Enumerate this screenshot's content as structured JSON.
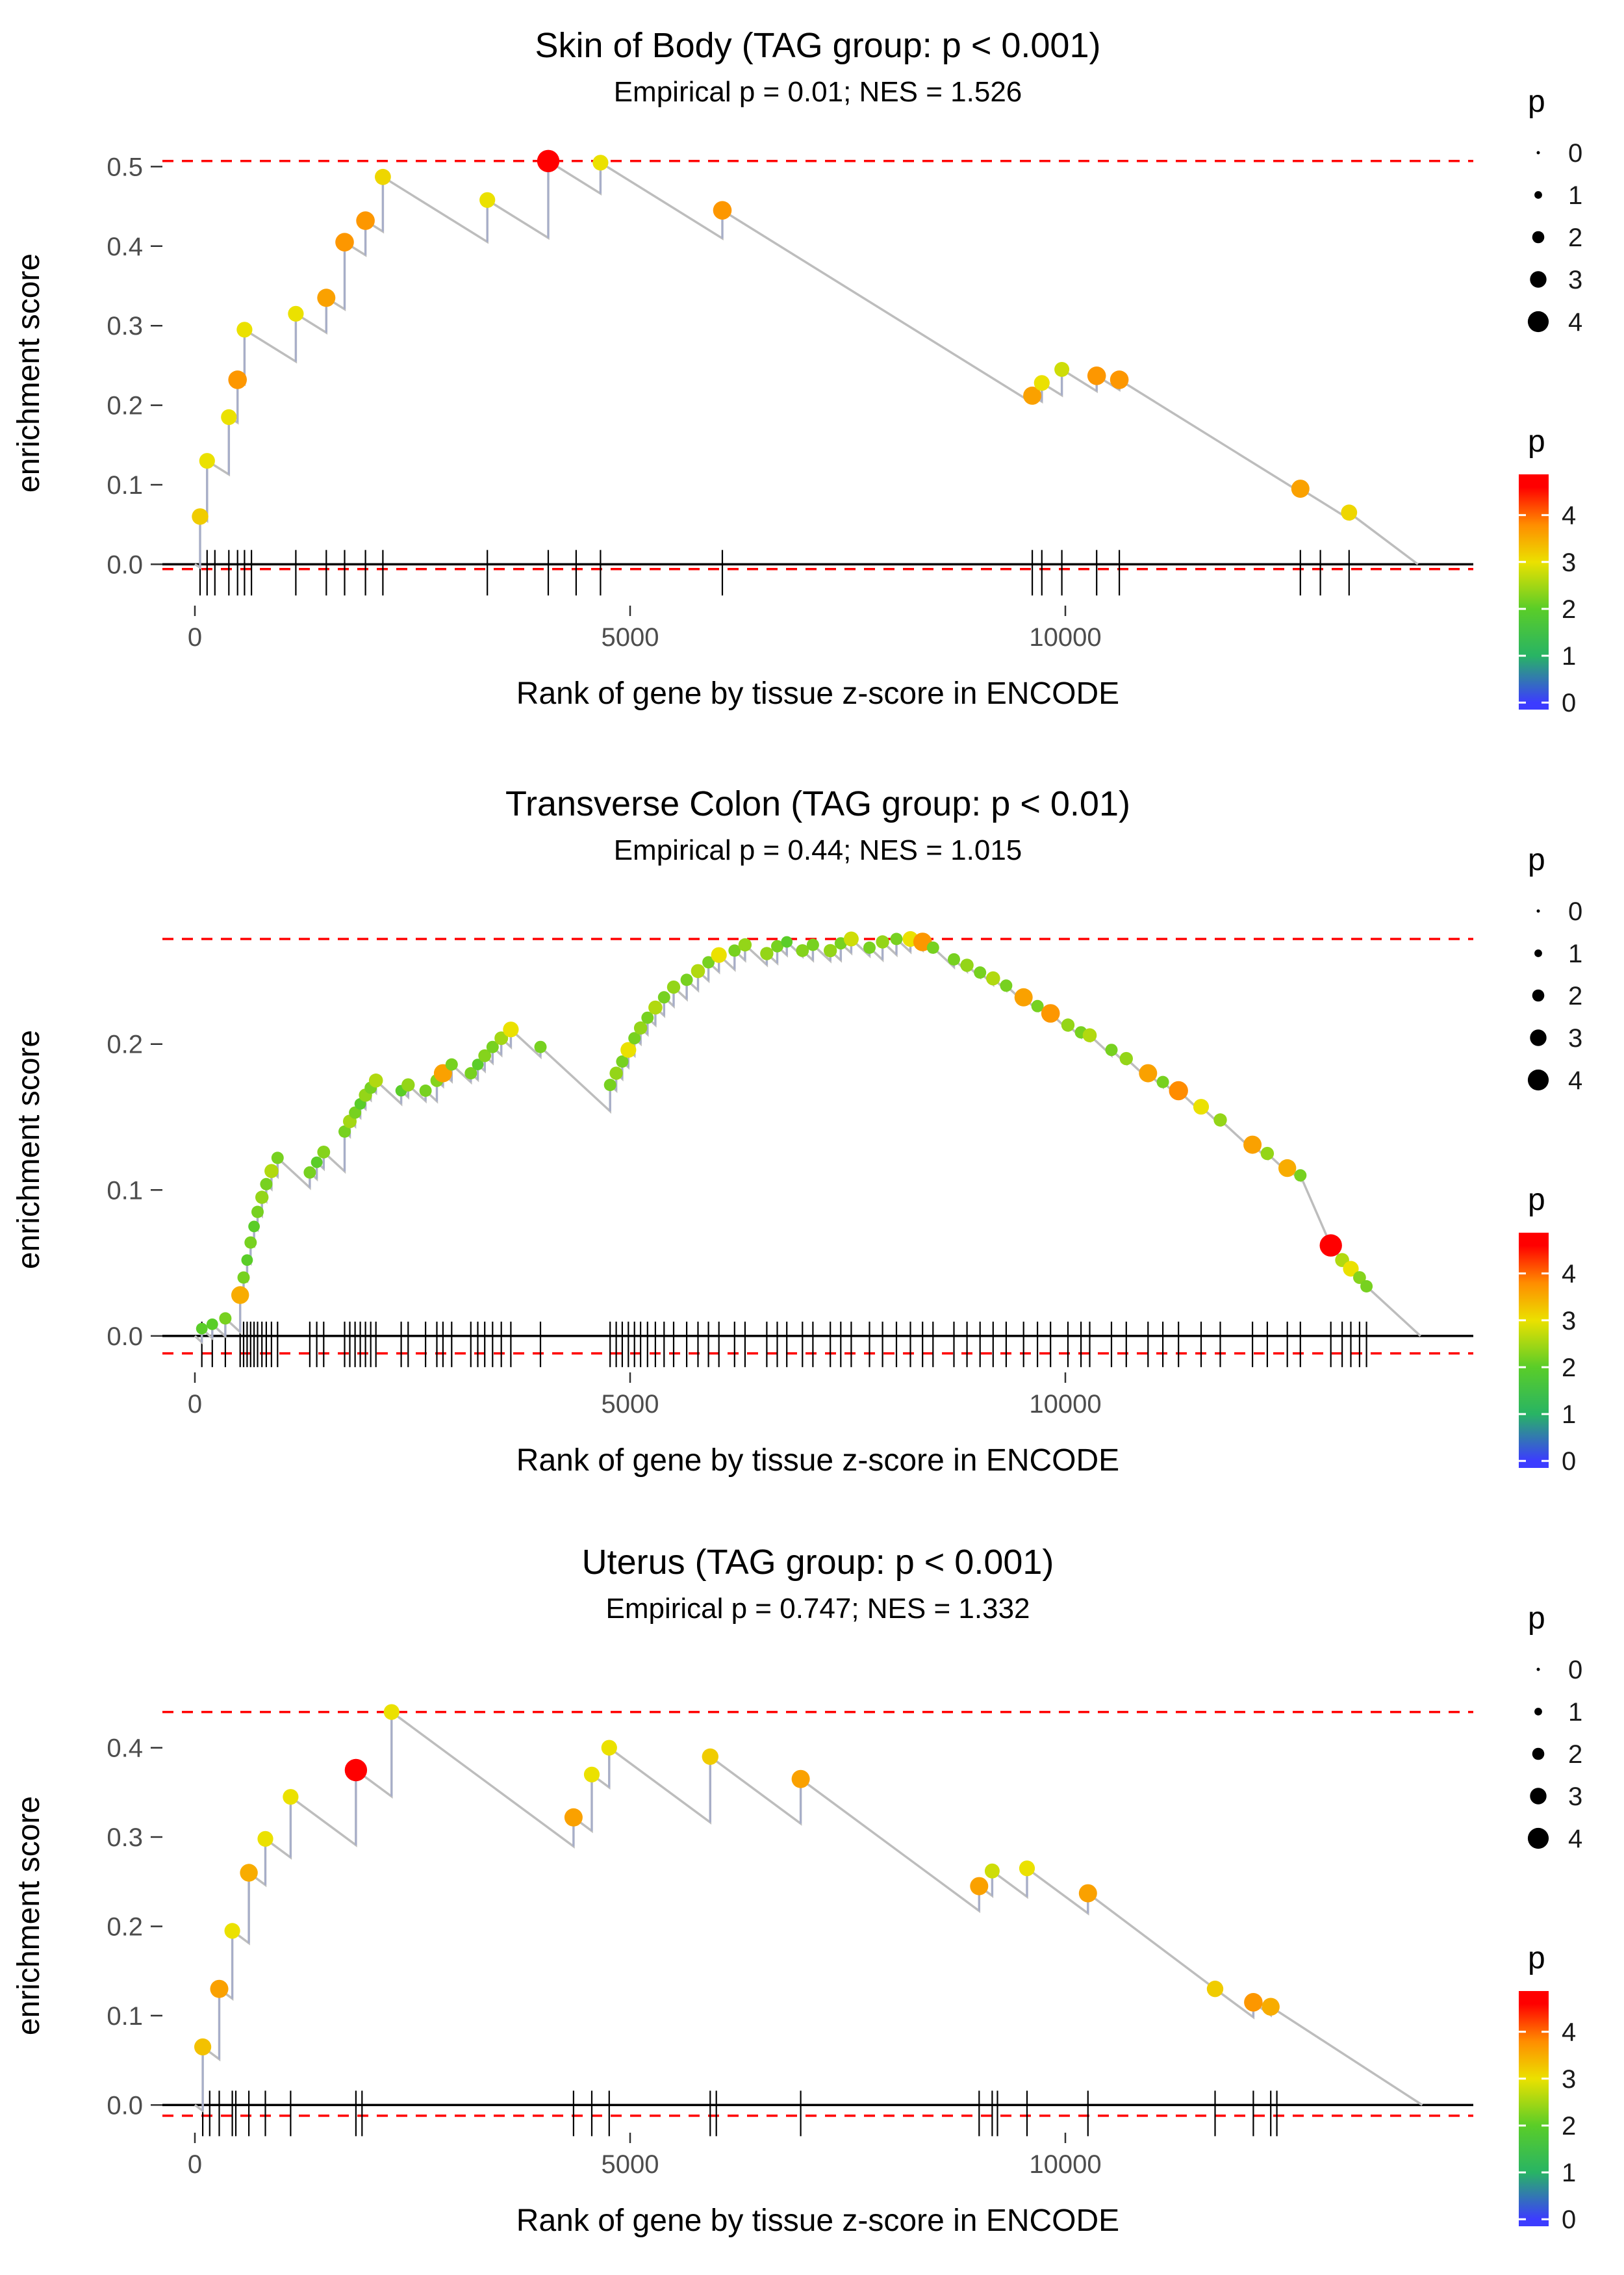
{
  "colors": {
    "threshold_line": "#ff0000",
    "zero_line": "#000000",
    "curve": "#bdbdbd",
    "jump": "#a7aec9",
    "scale_low": "#3c3cff",
    "scale_mid": "#5acd28",
    "scale_high": "#ff0000"
  },
  "legend": {
    "size": {
      "title": "p",
      "values": [
        0,
        1,
        2,
        3,
        4
      ]
    },
    "color": {
      "title": "p",
      "values": [
        4,
        3,
        2,
        1,
        0
      ]
    }
  },
  "chart_data": [
    {
      "type": "line",
      "title": "Skin of Body (TAG group: p < 0.001)",
      "subtitle": "Empirical p = 0.01; NES = 1.526",
      "xlabel": "Rank of gene by tissue z-score in ENCODE",
      "ylabel": "enrichment score",
      "xtick_values": [
        0,
        5000,
        10000
      ],
      "xtick_labels": [
        "0",
        "5000",
        "10000"
      ],
      "ytick_values": [
        0,
        0.1,
        0.2,
        0.3,
        0.4,
        0.5
      ],
      "ytick_labels": [
        "0.0",
        "0.1",
        "0.2",
        "0.3",
        "0.4",
        "0.5"
      ],
      "ylim": [
        -0.052,
        0.533
      ],
      "es_max_line": 0.507,
      "es_min_line": -0.006,
      "decay_per_x": 6.8e-05,
      "x_end": 14050,
      "points": [
        [
          60,
          0.06,
          3.2
        ],
        [
          140,
          0.13,
          3.0
        ],
        [
          390,
          0.185,
          3.0
        ],
        [
          490,
          0.232,
          3.7
        ],
        [
          570,
          0.295,
          3.0
        ],
        [
          1160,
          0.315,
          3.0
        ],
        [
          1510,
          0.335,
          3.6
        ],
        [
          1720,
          0.405,
          3.7
        ],
        [
          1960,
          0.432,
          3.7
        ],
        [
          2160,
          0.487,
          3.1
        ],
        [
          3360,
          0.458,
          3.0
        ],
        [
          4060,
          0.507,
          4.6
        ],
        [
          4660,
          0.505,
          3.0
        ],
        [
          6060,
          0.445,
          3.7
        ],
        [
          9620,
          0.212,
          3.6
        ],
        [
          9730,
          0.228,
          3.0
        ],
        [
          9960,
          0.245,
          2.8
        ],
        [
          10360,
          0.237,
          3.7
        ],
        [
          10620,
          0.232,
          3.7
        ],
        [
          12700,
          0.095,
          3.6
        ],
        [
          13260,
          0.065,
          3.1
        ]
      ],
      "rug": [
        60,
        140,
        230,
        390,
        490,
        570,
        650,
        1160,
        1510,
        1720,
        1960,
        2160,
        3360,
        4060,
        4380,
        4660,
        6060,
        9620,
        9730,
        9960,
        10360,
        10620,
        12700,
        12930,
        13260
      ]
    },
    {
      "type": "line",
      "title": "Transverse Colon (TAG group: p < 0.01)",
      "subtitle": "Empirical p = 0.44; NES = 1.015",
      "xlabel": "Rank of gene by tissue z-score in ENCODE",
      "ylabel": "enrichment score",
      "xtick_values": [
        0,
        5000,
        10000
      ],
      "xtick_labels": [
        "0",
        "5000",
        "10000"
      ],
      "ytick_values": [
        0,
        0.1,
        0.2
      ],
      "ytick_labels": [
        "0.0",
        "0.1",
        "0.2"
      ],
      "ylim": [
        -0.025,
        0.28
      ],
      "es_max_line": 0.272,
      "es_min_line": -0.012,
      "decay_per_x": 5.5e-05,
      "x_end": 14080,
      "points": [
        [
          80,
          0.005,
          2.0
        ],
        [
          200,
          0.008,
          2.0
        ],
        [
          350,
          0.012,
          2.2
        ],
        [
          520,
          0.028,
          3.5
        ],
        [
          560,
          0.04,
          2.2
        ],
        [
          600,
          0.052,
          2.0
        ],
        [
          640,
          0.064,
          2.2
        ],
        [
          680,
          0.075,
          2.0
        ],
        [
          720,
          0.085,
          2.2
        ],
        [
          770,
          0.095,
          2.4
        ],
        [
          820,
          0.104,
          2.2
        ],
        [
          880,
          0.113,
          2.6
        ],
        [
          950,
          0.122,
          2.2
        ],
        [
          1320,
          0.112,
          2.2
        ],
        [
          1400,
          0.119,
          2.0
        ],
        [
          1480,
          0.126,
          2.3
        ],
        [
          1720,
          0.14,
          2.2
        ],
        [
          1780,
          0.147,
          2.5
        ],
        [
          1840,
          0.153,
          2.2
        ],
        [
          1900,
          0.159,
          2.0
        ],
        [
          1960,
          0.165,
          2.4
        ],
        [
          2020,
          0.17,
          2.2
        ],
        [
          2080,
          0.175,
          2.6
        ],
        [
          2370,
          0.168,
          2.0
        ],
        [
          2450,
          0.172,
          2.4
        ],
        [
          2650,
          0.168,
          2.2
        ],
        [
          2780,
          0.175,
          2.3
        ],
        [
          2850,
          0.18,
          3.6
        ],
        [
          2950,
          0.186,
          2.2
        ],
        [
          3170,
          0.18,
          2.2
        ],
        [
          3250,
          0.186,
          2.0
        ],
        [
          3330,
          0.192,
          2.3
        ],
        [
          3420,
          0.198,
          2.2
        ],
        [
          3520,
          0.204,
          2.5
        ],
        [
          3630,
          0.21,
          3.0
        ],
        [
          3970,
          0.198,
          2.2
        ],
        [
          4770,
          0.172,
          2.2
        ],
        [
          4840,
          0.18,
          2.4
        ],
        [
          4910,
          0.188,
          2.2
        ],
        [
          4980,
          0.196,
          3.0
        ],
        [
          5050,
          0.204,
          2.2
        ],
        [
          5120,
          0.211,
          2.4
        ],
        [
          5200,
          0.218,
          2.2
        ],
        [
          5290,
          0.225,
          2.6
        ],
        [
          5390,
          0.232,
          2.2
        ],
        [
          5500,
          0.239,
          2.4
        ],
        [
          5650,
          0.244,
          2.2
        ],
        [
          5780,
          0.25,
          2.6
        ],
        [
          5900,
          0.256,
          2.2
        ],
        [
          6020,
          0.261,
          3.0
        ],
        [
          6200,
          0.264,
          2.2
        ],
        [
          6320,
          0.268,
          2.4
        ],
        [
          6570,
          0.262,
          2.4
        ],
        [
          6690,
          0.267,
          2.2
        ],
        [
          6800,
          0.27,
          2.0
        ],
        [
          6980,
          0.264,
          2.3
        ],
        [
          7100,
          0.268,
          2.2
        ],
        [
          7300,
          0.264,
          2.4
        ],
        [
          7420,
          0.269,
          2.2
        ],
        [
          7540,
          0.272,
          2.8
        ],
        [
          7750,
          0.266,
          2.2
        ],
        [
          7900,
          0.27,
          2.4
        ],
        [
          8060,
          0.272,
          2.2
        ],
        [
          8220,
          0.272,
          3.0
        ],
        [
          8360,
          0.27,
          3.7
        ],
        [
          8480,
          0.266,
          2.2
        ],
        [
          8720,
          0.258,
          2.2
        ],
        [
          8870,
          0.254,
          2.4
        ],
        [
          9020,
          0.249,
          2.2
        ],
        [
          9170,
          0.245,
          2.6
        ],
        [
          9320,
          0.24,
          2.2
        ],
        [
          9520,
          0.232,
          3.6
        ],
        [
          9680,
          0.226,
          2.2
        ],
        [
          9830,
          0.221,
          3.7
        ],
        [
          10030,
          0.213,
          2.4
        ],
        [
          10180,
          0.208,
          2.2
        ],
        [
          10280,
          0.206,
          2.6
        ],
        [
          10530,
          0.196,
          2.2
        ],
        [
          10700,
          0.19,
          2.4
        ],
        [
          10950,
          0.18,
          3.6
        ],
        [
          11120,
          0.174,
          2.2
        ],
        [
          11300,
          0.168,
          3.8
        ],
        [
          11560,
          0.157,
          3.0
        ],
        [
          11780,
          0.148,
          2.4
        ],
        [
          12150,
          0.131,
          3.6
        ],
        [
          12320,
          0.125,
          2.4
        ],
        [
          12550,
          0.115,
          3.5
        ],
        [
          12700,
          0.11,
          2.2
        ],
        [
          13050,
          0.062,
          4.6
        ],
        [
          13180,
          0.052,
          2.6
        ],
        [
          13280,
          0.046,
          3.0
        ],
        [
          13380,
          0.04,
          2.3
        ],
        [
          13460,
          0.034,
          2.2
        ]
      ],
      "rug": [
        80,
        200,
        350,
        520,
        560,
        600,
        640,
        680,
        720,
        770,
        820,
        880,
        950,
        1320,
        1400,
        1480,
        1720,
        1780,
        1840,
        1900,
        1960,
        2020,
        2080,
        2370,
        2450,
        2650,
        2780,
        2850,
        2950,
        3170,
        3250,
        3330,
        3420,
        3520,
        3630,
        3970,
        4770,
        4840,
        4910,
        4980,
        5050,
        5120,
        5200,
        5290,
        5390,
        5500,
        5650,
        5780,
        5900,
        6020,
        6200,
        6320,
        6570,
        6690,
        6800,
        6980,
        7100,
        7300,
        7420,
        7540,
        7750,
        7900,
        8060,
        8220,
        8360,
        8480,
        8720,
        8870,
        9020,
        9170,
        9320,
        9520,
        9680,
        9830,
        10030,
        10180,
        10280,
        10530,
        10700,
        10950,
        11120,
        11300,
        11560,
        11780,
        12150,
        12320,
        12550,
        12700,
        13050,
        13180,
        13280,
        13380,
        13460
      ]
    },
    {
      "type": "line",
      "title": "Uterus (TAG group: p < 0.001)",
      "subtitle": "Empirical p = 0.747; NES = 1.332",
      "xlabel": "Rank of gene by tissue z-score in ENCODE",
      "ylabel": "enrichment score",
      "xtick_values": [
        0,
        5000,
        10000
      ],
      "xtick_labels": [
        "0",
        "5000",
        "10000"
      ],
      "ytick_values": [
        0,
        0.1,
        0.2,
        0.3,
        0.4
      ],
      "ytick_labels": [
        "0.0",
        "0.1",
        "0.2",
        "0.3",
        "0.4"
      ],
      "ylim": [
        -0.031,
        0.455
      ],
      "es_max_line": 0.44,
      "es_min_line": -0.012,
      "decay_per_x": 7.2e-05,
      "x_end": 14100,
      "points": [
        [
          90,
          0.065,
          3.3
        ],
        [
          280,
          0.13,
          3.6
        ],
        [
          430,
          0.195,
          3.0
        ],
        [
          620,
          0.26,
          3.5
        ],
        [
          810,
          0.298,
          3.0
        ],
        [
          1100,
          0.345,
          3.0
        ],
        [
          1850,
          0.375,
          4.6
        ],
        [
          2260,
          0.44,
          3.0
        ],
        [
          4350,
          0.322,
          3.6
        ],
        [
          4560,
          0.37,
          3.0
        ],
        [
          4760,
          0.4,
          3.0
        ],
        [
          5920,
          0.39,
          3.2
        ],
        [
          6960,
          0.365,
          3.6
        ],
        [
          9010,
          0.245,
          3.6
        ],
        [
          9160,
          0.262,
          2.8
        ],
        [
          9560,
          0.265,
          3.0
        ],
        [
          10260,
          0.237,
          3.6
        ],
        [
          11720,
          0.13,
          3.2
        ],
        [
          12160,
          0.115,
          3.7
        ],
        [
          12360,
          0.11,
          3.5
        ]
      ],
      "rug": [
        90,
        170,
        280,
        430,
        470,
        620,
        810,
        1100,
        1850,
        1920,
        4350,
        4560,
        4760,
        5920,
        5990,
        6960,
        9010,
        9160,
        9220,
        9560,
        10260,
        11720,
        12160,
        12360,
        12430
      ]
    }
  ]
}
